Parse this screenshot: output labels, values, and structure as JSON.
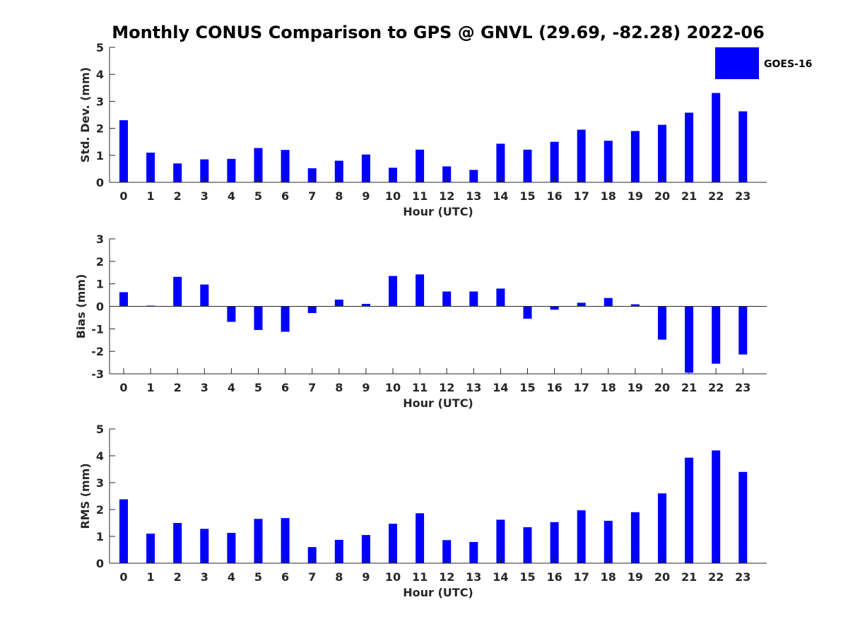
{
  "chart_data": [
    {
      "type": "bar",
      "title": "Monthly CONUS Comparison to GPS @ GNVL (29.69, -82.28) 2022-06",
      "xlabel": "Hour (UTC)",
      "ylabel": "Std. Dev. (mm)",
      "categories": [
        "0",
        "1",
        "2",
        "3",
        "4",
        "5",
        "6",
        "7",
        "8",
        "9",
        "10",
        "11",
        "12",
        "13",
        "14",
        "15",
        "16",
        "17",
        "18",
        "19",
        "20",
        "21",
        "22",
        "23"
      ],
      "series": [
        {
          "name": "GOES-16",
          "color": "#0000ff",
          "values": [
            2.3,
            1.1,
            0.7,
            0.85,
            0.87,
            1.27,
            1.2,
            0.52,
            0.8,
            1.03,
            0.54,
            1.21,
            0.59,
            0.46,
            1.43,
            1.21,
            1.5,
            1.95,
            1.54,
            1.9,
            2.13,
            2.58,
            3.31,
            2.63
          ]
        }
      ],
      "ylim": [
        0,
        5
      ],
      "yticks": [
        0,
        1,
        2,
        3,
        4,
        5
      ],
      "legend": "top-right"
    },
    {
      "type": "bar",
      "title": "",
      "xlabel": "Hour (UTC)",
      "ylabel": "Bias (mm)",
      "categories": [
        "0",
        "1",
        "2",
        "3",
        "4",
        "5",
        "6",
        "7",
        "8",
        "9",
        "10",
        "11",
        "12",
        "13",
        "14",
        "15",
        "16",
        "17",
        "18",
        "19",
        "20",
        "21",
        "22",
        "23"
      ],
      "series": [
        {
          "name": "GOES-16",
          "color": "#0000ff",
          "values": [
            0.63,
            0.03,
            1.31,
            0.97,
            -0.69,
            -1.05,
            -1.13,
            -0.3,
            0.3,
            0.11,
            1.35,
            1.42,
            0.66,
            0.66,
            0.79,
            -0.55,
            -0.15,
            0.16,
            0.37,
            0.09,
            -1.48,
            -2.95,
            -2.55,
            -2.14
          ]
        }
      ],
      "ylim": [
        -3,
        3
      ],
      "yticks": [
        -3,
        -2,
        -1,
        0,
        1,
        2,
        3
      ],
      "zero_line": true
    },
    {
      "type": "bar",
      "title": "",
      "xlabel": "Hour (UTC)",
      "ylabel": "RMS (mm)",
      "categories": [
        "0",
        "1",
        "2",
        "3",
        "4",
        "5",
        "6",
        "7",
        "8",
        "9",
        "10",
        "11",
        "12",
        "13",
        "14",
        "15",
        "16",
        "17",
        "18",
        "19",
        "20",
        "21",
        "22",
        "23"
      ],
      "series": [
        {
          "name": "GOES-16",
          "color": "#0000ff",
          "values": [
            2.38,
            1.1,
            1.5,
            1.28,
            1.13,
            1.65,
            1.68,
            0.6,
            0.87,
            1.05,
            1.47,
            1.86,
            0.86,
            0.79,
            1.62,
            1.34,
            1.53,
            1.97,
            1.58,
            1.9,
            2.6,
            3.93,
            4.2,
            3.4
          ]
        }
      ],
      "ylim": [
        0,
        5
      ],
      "yticks": [
        0,
        1,
        2,
        3,
        4,
        5
      ]
    }
  ]
}
